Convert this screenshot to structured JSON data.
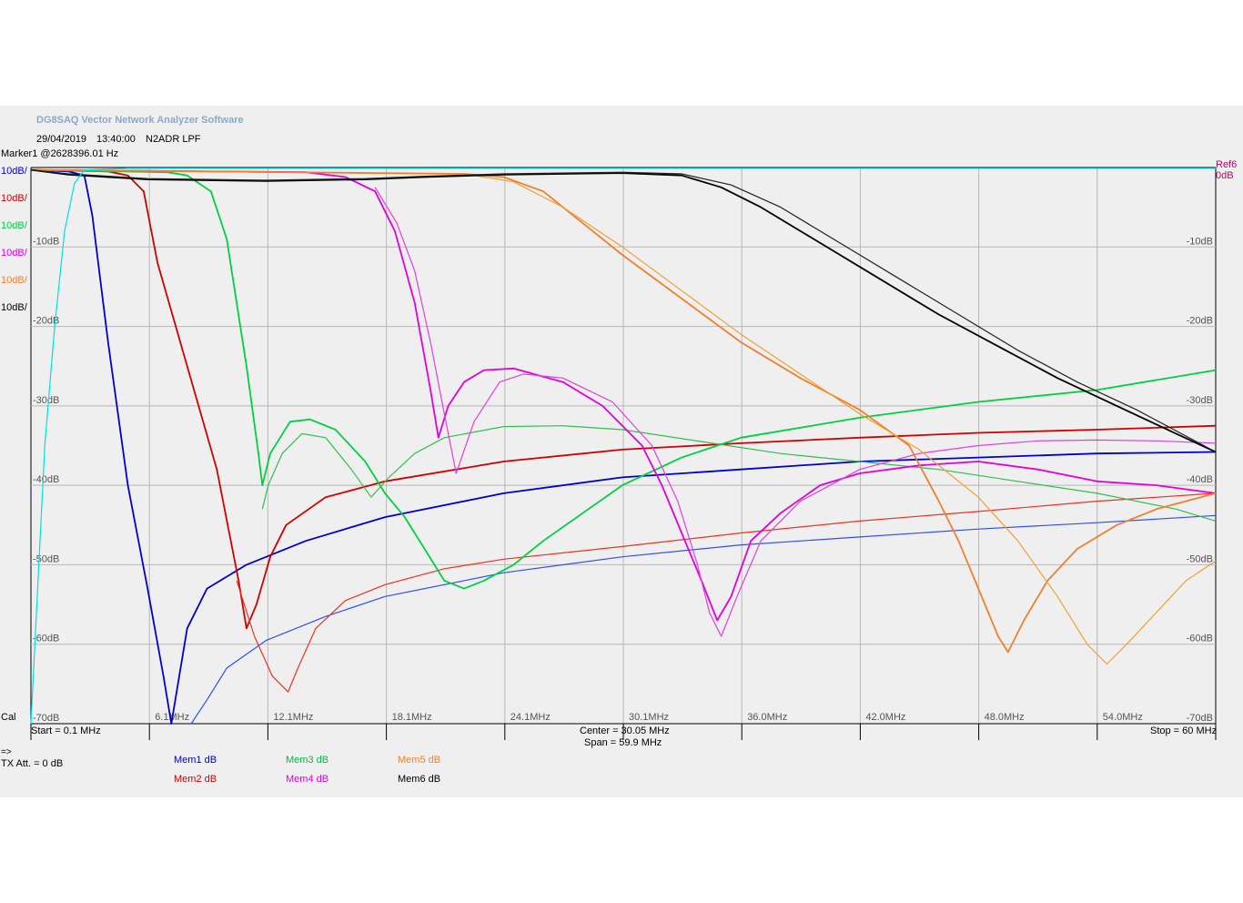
{
  "header": {
    "app_title": "DG8SAQ Vector Network Analyzer Software",
    "date": "29/04/2019",
    "time": "13:40:00",
    "device": "N2ADR LPF",
    "marker": "Marker1 @2628396.01 Hz",
    "ref_label": "Ref6",
    "ref_value": "0dB"
  },
  "scale_labels": [
    {
      "text": "10dB/",
      "color": "#0000d0"
    },
    {
      "text": "10dB/",
      "color": "#d00000"
    },
    {
      "text": "10dB/",
      "color": "#00d040"
    },
    {
      "text": "10dB/",
      "color": "#e000e0"
    },
    {
      "text": "10dB/",
      "color": "#f08030"
    },
    {
      "text": "10dB/",
      "color": "#000000"
    }
  ],
  "footer": {
    "cal": "Cal",
    "start": "Start = 0.1 MHz",
    "center": "Center = 30.05 MHz",
    "span": "Span = 59.9 MHz",
    "stop": "Stop = 60 MHz",
    "arrow": "=>",
    "tx_att": "TX Att.   = 0 dB"
  },
  "legend": [
    {
      "text": "Mem1 dB",
      "color": "#0000d0"
    },
    {
      "text": "Mem2 dB",
      "color": "#d00000"
    },
    {
      "text": "Mem3 dB",
      "color": "#00c040"
    },
    {
      "text": "Mem4 dB",
      "color": "#e000e0"
    },
    {
      "text": "Mem5 dB",
      "color": "#f08030"
    },
    {
      "text": "Mem6 dB",
      "color": "#000000"
    }
  ],
  "chart_data": {
    "type": "line",
    "xlim": [
      0.1,
      60
    ],
    "ylim": [
      -70,
      0
    ],
    "x_unit": "MHz",
    "y_unit": "dB",
    "x_tick_labels": [
      "6.1MHz",
      "12.1MHz",
      "18.1MHz",
      "24.1MHz",
      "30.1MHz",
      "36.0MHz",
      "42.0MHz",
      "48.0MHz",
      "54.0MHz"
    ],
    "y_tick_labels_left": [
      "-10dB",
      "-20dB",
      "-30dB",
      "-40dB",
      "-50dB",
      "-60dB",
      "-70dB"
    ],
    "y_tick_labels_right": [
      "-10dB",
      "-20dB",
      "-30dB",
      "-40dB",
      "-50dB",
      "-60dB",
      "-70dB"
    ],
    "grid": true,
    "series": [
      {
        "name": "Mem1 dB",
        "kind": "S21",
        "color": "#0000d0",
        "points": [
          [
            0.1,
            -0.3
          ],
          [
            2,
            -0.5
          ],
          [
            2.8,
            -1
          ],
          [
            3.2,
            -6
          ],
          [
            4,
            -22
          ],
          [
            5,
            -40
          ],
          [
            6,
            -53
          ],
          [
            6.8,
            -64
          ],
          [
            7.2,
            -70
          ],
          [
            8,
            -58
          ],
          [
            9,
            -53
          ],
          [
            11,
            -50
          ],
          [
            14,
            -47
          ],
          [
            18,
            -44
          ],
          [
            24,
            -41
          ],
          [
            30,
            -39
          ],
          [
            36,
            -38
          ],
          [
            42,
            -37
          ],
          [
            48,
            -36.5
          ],
          [
            54,
            -36
          ],
          [
            60,
            -35.8
          ]
        ]
      },
      {
        "name": "Mem1 dB",
        "kind": "S11",
        "color": "#3050f0",
        "points": [
          [
            8.2,
            -70
          ],
          [
            9,
            -67
          ],
          [
            10,
            -63
          ],
          [
            12,
            -59.5
          ],
          [
            15,
            -56.5
          ],
          [
            18,
            -54
          ],
          [
            24,
            -51
          ],
          [
            30,
            -49
          ],
          [
            36,
            -47.5
          ],
          [
            42,
            -46.5
          ],
          [
            48,
            -45.5
          ],
          [
            54,
            -44.7
          ],
          [
            60,
            -43.8
          ]
        ]
      },
      {
        "name": "Mem2 dB",
        "kind": "S21",
        "color": "#d00000",
        "points": [
          [
            0.1,
            -0.3
          ],
          [
            4,
            -0.5
          ],
          [
            5,
            -1
          ],
          [
            5.8,
            -3
          ],
          [
            6.5,
            -12
          ],
          [
            8,
            -25
          ],
          [
            9.5,
            -38
          ],
          [
            10.6,
            -52
          ],
          [
            11,
            -58
          ],
          [
            11.5,
            -55
          ],
          [
            12.2,
            -49
          ],
          [
            13,
            -45
          ],
          [
            15,
            -41.5
          ],
          [
            18,
            -39.5
          ],
          [
            24,
            -37
          ],
          [
            30,
            -35.5
          ],
          [
            36,
            -34.7
          ],
          [
            42,
            -34
          ],
          [
            48,
            -33.4
          ],
          [
            54,
            -33
          ],
          [
            60,
            -32.5
          ]
        ]
      },
      {
        "name": "Mem2 dB",
        "kind": "S11",
        "color": "#f03020",
        "points": [
          [
            10.5,
            -52
          ],
          [
            11.4,
            -59
          ],
          [
            12.3,
            -64
          ],
          [
            13.1,
            -66
          ],
          [
            13.6,
            -63
          ],
          [
            14.5,
            -58
          ],
          [
            16,
            -54.5
          ],
          [
            18,
            -52.5
          ],
          [
            21,
            -50.5
          ],
          [
            24,
            -49.3
          ],
          [
            30,
            -47.7
          ],
          [
            36,
            -46
          ],
          [
            42,
            -44.5
          ],
          [
            48,
            -43.3
          ],
          [
            54,
            -42
          ],
          [
            60,
            -41
          ]
        ]
      },
      {
        "name": "Mem3 dB",
        "kind": "S21",
        "color": "#00d040",
        "points": [
          [
            0.1,
            -0.3
          ],
          [
            7,
            -0.6
          ],
          [
            8,
            -1
          ],
          [
            9.2,
            -3
          ],
          [
            10,
            -9
          ],
          [
            11,
            -25
          ],
          [
            11.6,
            -36
          ],
          [
            11.8,
            -40
          ],
          [
            12.2,
            -36
          ],
          [
            13.2,
            -32
          ],
          [
            14.2,
            -31.7
          ],
          [
            15.5,
            -33
          ],
          [
            17,
            -37
          ],
          [
            18,
            -41
          ],
          [
            19,
            -44
          ],
          [
            20,
            -48
          ],
          [
            21,
            -52
          ],
          [
            22,
            -53
          ],
          [
            23,
            -52
          ],
          [
            24.5,
            -50
          ],
          [
            26,
            -47
          ],
          [
            28,
            -43.5
          ],
          [
            30,
            -40
          ],
          [
            33,
            -36.5
          ],
          [
            36,
            -34
          ],
          [
            42,
            -31.5
          ],
          [
            48,
            -29.5
          ],
          [
            54,
            -28
          ],
          [
            60,
            -25.5
          ]
        ]
      },
      {
        "name": "Mem3 dB",
        "kind": "S11",
        "color": "#30c050",
        "points": [
          [
            11.8,
            -43
          ],
          [
            12.1,
            -40
          ],
          [
            12.8,
            -36
          ],
          [
            13.8,
            -33.5
          ],
          [
            15,
            -34
          ],
          [
            16.3,
            -38
          ],
          [
            17.3,
            -41.5
          ],
          [
            18.2,
            -39
          ],
          [
            19.5,
            -36
          ],
          [
            21,
            -34
          ],
          [
            24,
            -32.6
          ],
          [
            27,
            -32.5
          ],
          [
            30,
            -33
          ],
          [
            34,
            -34.5
          ],
          [
            38,
            -36
          ],
          [
            42,
            -37
          ],
          [
            46,
            -38
          ],
          [
            50,
            -39.5
          ],
          [
            54,
            -41
          ],
          [
            58,
            -43
          ],
          [
            60,
            -44.5
          ]
        ]
      },
      {
        "name": "Mem4 dB",
        "kind": "S21",
        "color": "#e000e0",
        "points": [
          [
            0.1,
            -0.3
          ],
          [
            14,
            -0.6
          ],
          [
            16,
            -1.2
          ],
          [
            17.5,
            -3
          ],
          [
            18.5,
            -8
          ],
          [
            19.5,
            -17
          ],
          [
            20.3,
            -28
          ],
          [
            20.7,
            -34
          ],
          [
            21.2,
            -30
          ],
          [
            22,
            -27
          ],
          [
            23,
            -25.5
          ],
          [
            24.5,
            -25.3
          ],
          [
            27,
            -27
          ],
          [
            29,
            -30
          ],
          [
            31,
            -35
          ],
          [
            32,
            -40
          ],
          [
            33,
            -46
          ],
          [
            34,
            -52
          ],
          [
            34.8,
            -57
          ],
          [
            35.5,
            -54
          ],
          [
            36.5,
            -47
          ],
          [
            38,
            -43.5
          ],
          [
            40,
            -40
          ],
          [
            42,
            -38.5
          ],
          [
            45,
            -37.5
          ],
          [
            48,
            -37
          ],
          [
            51,
            -38
          ],
          [
            54,
            -39.5
          ],
          [
            57,
            -40
          ],
          [
            60,
            -41
          ]
        ]
      },
      {
        "name": "Mem4 dB",
        "kind": "S11",
        "color": "#e040e0",
        "points": [
          [
            17.5,
            -2.5
          ],
          [
            18.6,
            -7
          ],
          [
            19.5,
            -13
          ],
          [
            20.3,
            -22
          ],
          [
            21,
            -31
          ],
          [
            21.6,
            -38.5
          ],
          [
            22.5,
            -32
          ],
          [
            23.8,
            -27
          ],
          [
            25,
            -26
          ],
          [
            27,
            -26.5
          ],
          [
            29.5,
            -29.5
          ],
          [
            31.5,
            -35
          ],
          [
            32.8,
            -42
          ],
          [
            33.8,
            -50
          ],
          [
            34.4,
            -56
          ],
          [
            35,
            -59
          ],
          [
            35.8,
            -54
          ],
          [
            37,
            -47
          ],
          [
            39,
            -42
          ],
          [
            42,
            -38
          ],
          [
            45,
            -36
          ],
          [
            48,
            -35
          ],
          [
            51,
            -34.4
          ],
          [
            54,
            -34.3
          ],
          [
            57,
            -34.4
          ],
          [
            60,
            -34.7
          ]
        ]
      },
      {
        "name": "Mem5 dB",
        "kind": "S21",
        "color": "#f08030",
        "points": [
          [
            0.1,
            -0.3
          ],
          [
            22,
            -0.8
          ],
          [
            24,
            -1.2
          ],
          [
            26,
            -3
          ],
          [
            28,
            -7
          ],
          [
            30,
            -11
          ],
          [
            33,
            -16.5
          ],
          [
            36,
            -22
          ],
          [
            39,
            -26.5
          ],
          [
            42,
            -30.5
          ],
          [
            44.5,
            -35
          ],
          [
            46,
            -42
          ],
          [
            47,
            -47
          ],
          [
            48,
            -53
          ],
          [
            49,
            -59
          ],
          [
            49.5,
            -61
          ],
          [
            50.3,
            -57
          ],
          [
            51.5,
            -52
          ],
          [
            53,
            -48
          ],
          [
            55,
            -45
          ],
          [
            57,
            -43
          ],
          [
            60,
            -41
          ]
        ]
      },
      {
        "name": "Mem5 dB",
        "kind": "S11",
        "color": "#f0a030",
        "points": [
          [
            22,
            -0.8
          ],
          [
            24.5,
            -1.8
          ],
          [
            27,
            -5
          ],
          [
            30,
            -10
          ],
          [
            33,
            -15.5
          ],
          [
            36,
            -21
          ],
          [
            39,
            -26
          ],
          [
            42,
            -31
          ],
          [
            45,
            -35.5
          ],
          [
            48,
            -41.5
          ],
          [
            50,
            -47
          ],
          [
            52,
            -54
          ],
          [
            53.5,
            -60
          ],
          [
            54.5,
            -62.5
          ],
          [
            55.5,
            -60
          ],
          [
            57,
            -56
          ],
          [
            58.5,
            -52
          ],
          [
            60,
            -49.5
          ]
        ]
      },
      {
        "name": "Mem6 dB",
        "kind": "S21",
        "color": "#000000",
        "points": [
          [
            0.1,
            -0.3
          ],
          [
            2,
            -0.9
          ],
          [
            6,
            -1.5
          ],
          [
            12,
            -1.7
          ],
          [
            17,
            -1.5
          ],
          [
            20,
            -1.2
          ],
          [
            24,
            -0.9
          ],
          [
            30,
            -0.7
          ],
          [
            33,
            -1
          ],
          [
            35,
            -2.5
          ],
          [
            37,
            -5
          ],
          [
            40,
            -9.5
          ],
          [
            43,
            -14
          ],
          [
            46,
            -18.5
          ],
          [
            49,
            -22.5
          ],
          [
            52,
            -26.5
          ],
          [
            55,
            -30
          ],
          [
            58,
            -33.5
          ],
          [
            60,
            -35.8
          ]
        ]
      },
      {
        "name": "Mem6 dB",
        "kind": "S11",
        "color": "#222222",
        "points": [
          [
            0.1,
            -0.3
          ],
          [
            2,
            -0.8
          ],
          [
            6,
            -1.4
          ],
          [
            12,
            -1.6
          ],
          [
            17,
            -1.4
          ],
          [
            20,
            -1.1
          ],
          [
            24,
            -0.8
          ],
          [
            30,
            -0.6
          ],
          [
            33,
            -0.8
          ],
          [
            35.5,
            -2.2
          ],
          [
            38,
            -5
          ],
          [
            41,
            -9.5
          ],
          [
            44,
            -14
          ],
          [
            47,
            -18.5
          ],
          [
            50,
            -23
          ],
          [
            53,
            -27
          ],
          [
            56,
            -30.5
          ],
          [
            60,
            -35.8
          ]
        ]
      },
      {
        "name": "Cal",
        "kind": "ref",
        "color": "#00e0e0",
        "points": [
          [
            0.1,
            -70
          ],
          [
            0.4,
            -55
          ],
          [
            0.8,
            -35
          ],
          [
            1.3,
            -20
          ],
          [
            1.8,
            -8
          ],
          [
            2.3,
            -2
          ],
          [
            2.8,
            -0.3
          ],
          [
            5,
            -0.1
          ],
          [
            30,
            -0.1
          ],
          [
            60,
            -0.1
          ]
        ]
      }
    ]
  }
}
